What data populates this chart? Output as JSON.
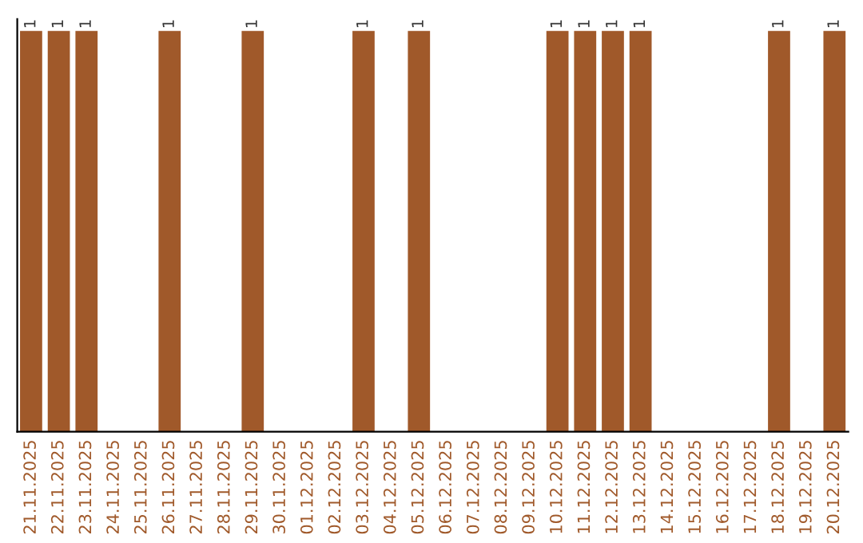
{
  "chart_data": {
    "type": "bar",
    "categories": [
      "21.11.2025",
      "22.11.2025",
      "23.11.2025",
      "24.11.2025",
      "25.11.2025",
      "26.11.2025",
      "27.11.2025",
      "28.11.2025",
      "29.11.2025",
      "30.11.2025",
      "01.12.2025",
      "02.12.2025",
      "03.12.2025",
      "04.12.2025",
      "05.12.2025",
      "06.12.2025",
      "07.12.2025",
      "08.12.2025",
      "09.12.2025",
      "10.12.2025",
      "11.12.2025",
      "12.12.2025",
      "13.12.2025",
      "14.12.2025",
      "15.12.2025",
      "16.12.2025",
      "17.12.2025",
      "18.12.2025",
      "19.12.2025",
      "20.12.2025"
    ],
    "values": [
      1,
      1,
      1,
      0,
      0,
      1,
      0,
      0,
      1,
      0,
      0,
      0,
      1,
      0,
      1,
      0,
      0,
      0,
      0,
      1,
      1,
      1,
      1,
      0,
      0,
      0,
      0,
      1,
      0,
      1
    ],
    "value_labels": [
      "1",
      "1",
      "1",
      null,
      null,
      "1",
      null,
      null,
      "1",
      null,
      null,
      null,
      "1",
      null,
      "1",
      null,
      null,
      null,
      null,
      "1",
      "1",
      "1",
      "1",
      null,
      null,
      null,
      null,
      "1",
      null,
      "1"
    ],
    "color": "#a0592a",
    "ylim": [
      0,
      1.03
    ],
    "tick_labels": "x",
    "grid": false,
    "legend": false
  }
}
